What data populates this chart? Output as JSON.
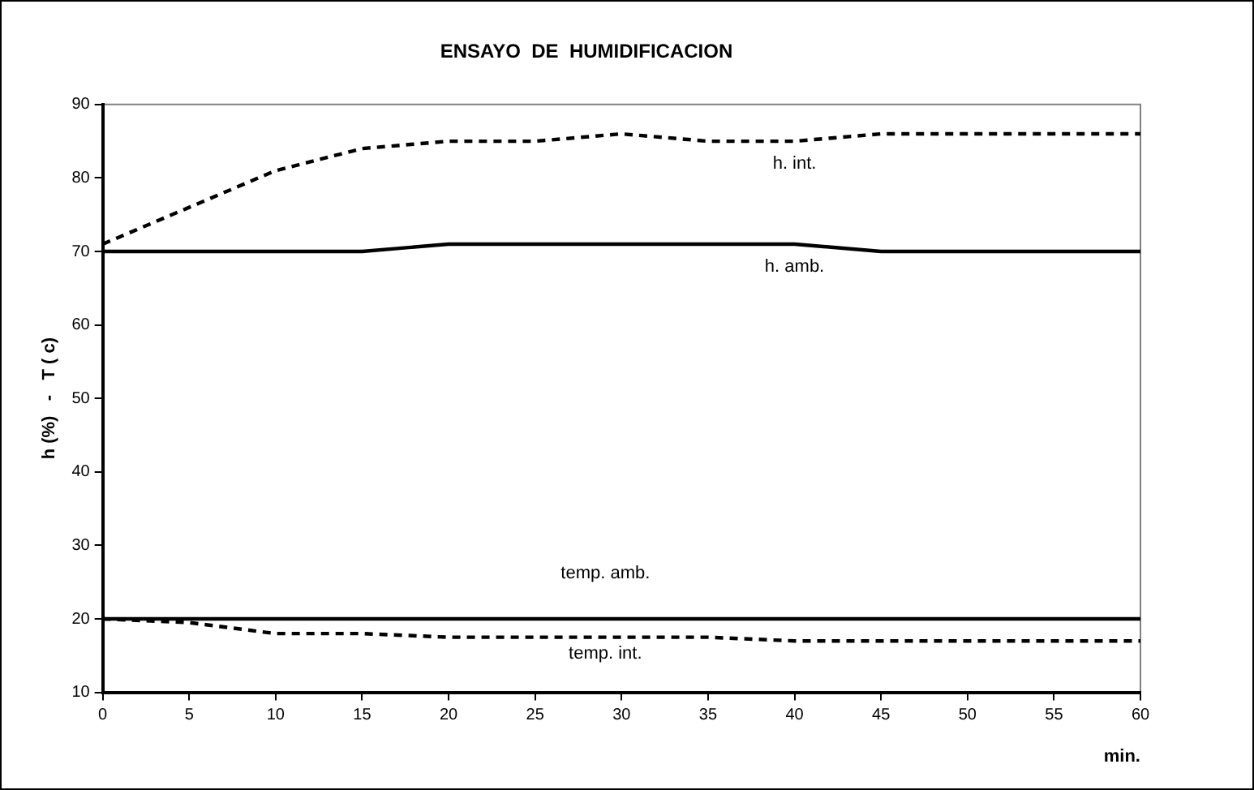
{
  "chart_data": {
    "type": "line",
    "title": "ENSAYO  DE  HUMIDIFICACION",
    "xlabel": "min.",
    "ylabel": "h (%)   -   T ( c)",
    "x": [
      0,
      5,
      10,
      15,
      20,
      25,
      30,
      35,
      40,
      45,
      50,
      55,
      60
    ],
    "xlim": [
      0,
      60
    ],
    "xticks": [
      0,
      5,
      10,
      15,
      20,
      25,
      30,
      35,
      40,
      45,
      50,
      55,
      60
    ],
    "ylim": [
      10,
      90
    ],
    "yticks": [
      10,
      20,
      30,
      40,
      50,
      60,
      70,
      80,
      90
    ],
    "grid": false,
    "legend": false,
    "marker": "none",
    "series": [
      {
        "name": "h. int.",
        "color": "#000000",
        "line_style": "dashed",
        "values": [
          71,
          76,
          81,
          84,
          85,
          85,
          86,
          85,
          85,
          86,
          86,
          86,
          86
        ]
      },
      {
        "name": "h. amb.",
        "color": "#000000",
        "line_style": "solid",
        "values": [
          70,
          70,
          70,
          70,
          71,
          71,
          71,
          71,
          71,
          70,
          70,
          70,
          70
        ]
      },
      {
        "name": "temp. amb.",
        "color": "#000000",
        "line_style": "solid",
        "values": [
          20,
          20,
          20,
          20,
          20,
          20,
          20,
          20,
          20,
          20,
          20,
          20,
          20
        ]
      },
      {
        "name": "temp. int.",
        "color": "#000000",
        "line_style": "dashed",
        "values": [
          20,
          19.5,
          18,
          18,
          17.5,
          17.5,
          17.5,
          17.5,
          17,
          17,
          17,
          17,
          17
        ]
      }
    ]
  }
}
